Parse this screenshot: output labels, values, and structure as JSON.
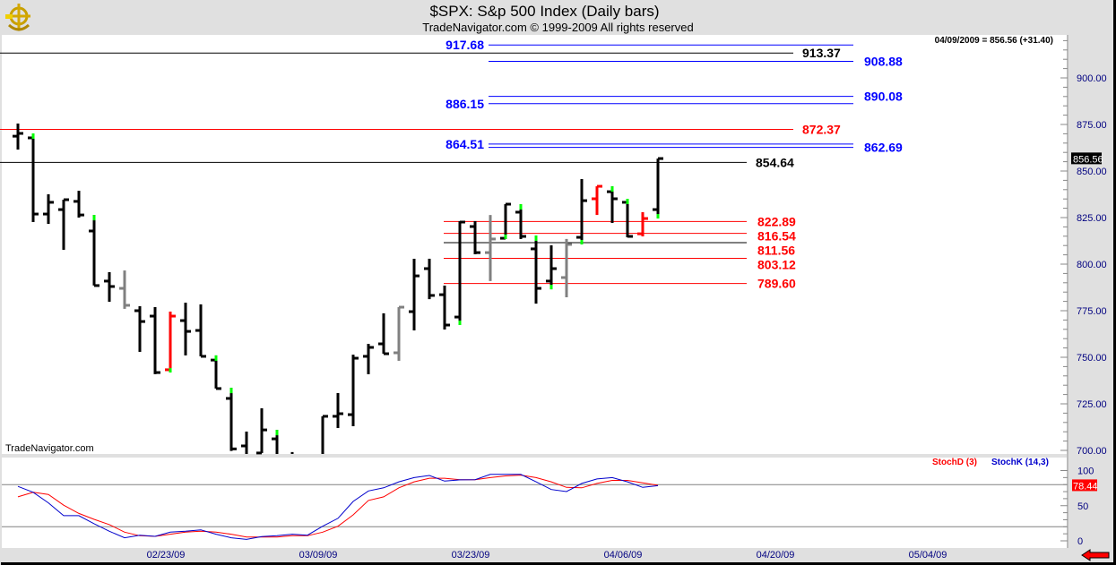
{
  "header": {
    "title": "$SPX:  S&p 500 Index  (Daily bars)",
    "subtitle": "TradeNavigator.com © 1999-2009 All rights reserved",
    "quote": "04/09/2009 = 856.56 (+31.40)",
    "watermark": "TradeNavigator.com",
    "logo": "TradeNavigator"
  },
  "icons": {
    "logo": "ship-wheel-anchor-icon",
    "nav": "red-left-arrow-icon"
  },
  "colors": {
    "up_bar": "#000000",
    "down_bar": "#ff0000",
    "neutral_bar": "#808080",
    "highlight": "#00ff00",
    "axis_text": "#000080",
    "stochK": "#0000cc",
    "stochD": "#ff0000"
  },
  "chart_data": [
    {
      "type": "ohlc",
      "title": "$SPX:  S&p 500 Index  (Daily bars)",
      "ylim": [
        700,
        925
      ],
      "yticks": [
        "900.00",
        "875.00",
        "850.00",
        "825.00",
        "800.00",
        "775.00",
        "750.00",
        "725.00",
        "700.00"
      ],
      "last_price_label": "856.56",
      "grid": false,
      "bars": [
        {
          "o": 868.7,
          "h": 875.5,
          "l": 861.5,
          "c": 870.2,
          "color": "black"
        },
        {
          "o": 867.8,
          "h": 870.2,
          "l": 822.6,
          "c": 826.9,
          "color": "black",
          "hl": "top"
        },
        {
          "o": 826.9,
          "h": 837.5,
          "l": 821.6,
          "c": 833.2,
          "color": "black"
        },
        {
          "o": 829.3,
          "h": 834.6,
          "l": 807.7,
          "c": 834.6,
          "color": "black"
        },
        {
          "o": 833.7,
          "h": 839.4,
          "l": 825.0,
          "c": 826.4,
          "color": "black"
        },
        {
          "o": 817.8,
          "h": 826.4,
          "l": 788.5,
          "c": 788.5,
          "color": "black",
          "hl": "top"
        },
        {
          "o": 790.9,
          "h": 795.7,
          "l": 779.8,
          "c": 788.0,
          "color": "black"
        },
        {
          "o": 787.0,
          "h": 796.6,
          "l": 776.0,
          "c": 777.9,
          "color": "gray"
        },
        {
          "o": 775.0,
          "h": 777.4,
          "l": 752.9,
          "c": 769.2,
          "color": "black"
        },
        {
          "o": 772.1,
          "h": 776.9,
          "l": 740.9,
          "c": 741.8,
          "color": "black"
        },
        {
          "o": 743.3,
          "h": 774.5,
          "l": 741.8,
          "c": 772.1,
          "color": "red",
          "hl": "bottom"
        },
        {
          "o": 769.7,
          "h": 779.3,
          "l": 751.0,
          "c": 763.9,
          "color": "black"
        },
        {
          "o": 764.4,
          "h": 778.4,
          "l": 750.5,
          "c": 750.5,
          "color": "black"
        },
        {
          "o": 748.5,
          "h": 751.0,
          "l": 733.2,
          "c": 733.2,
          "color": "black",
          "hl": "top"
        },
        {
          "o": 727.9,
          "h": 733.6,
          "l": 699.7,
          "c": 700.8,
          "color": "black",
          "hl": "top"
        },
        {
          "o": 702.4,
          "h": 710.1,
          "l": 692.3,
          "c": 696.3,
          "color": "black"
        },
        {
          "o": 698.6,
          "h": 722.6,
          "l": 698.6,
          "c": 711.0,
          "color": "black"
        },
        {
          "o": 706.2,
          "h": 711.0,
          "l": 677.9,
          "c": 682.6,
          "color": "black",
          "hl": "top"
        },
        {
          "o": 684.0,
          "h": 699.1,
          "l": 666.8,
          "c": 683.4,
          "color": "black"
        },
        {
          "o": 680.8,
          "h": 695.3,
          "l": 672.9,
          "c": 676.5,
          "color": "black"
        },
        {
          "o": 679.3,
          "h": 718.3,
          "l": 679.3,
          "c": 718.3,
          "color": "black"
        },
        {
          "o": 718.3,
          "h": 730.8,
          "l": 712.0,
          "c": 719.7,
          "color": "black"
        },
        {
          "o": 719.2,
          "h": 751.4,
          "l": 713.0,
          "c": 749.5,
          "color": "black"
        },
        {
          "o": 750.5,
          "h": 757.2,
          "l": 740.9,
          "c": 755.3,
          "color": "black"
        },
        {
          "o": 757.2,
          "h": 773.6,
          "l": 751.9,
          "c": 751.9,
          "color": "black"
        },
        {
          "o": 752.4,
          "h": 776.9,
          "l": 748.1,
          "c": 776.9,
          "color": "gray"
        },
        {
          "o": 774.5,
          "h": 802.9,
          "l": 764.4,
          "c": 793.7,
          "color": "black"
        },
        {
          "o": 797.6,
          "h": 802.9,
          "l": 781.2,
          "c": 783.2,
          "color": "black"
        },
        {
          "o": 783.6,
          "h": 788.5,
          "l": 764.9,
          "c": 767.3,
          "color": "black"
        },
        {
          "o": 771.6,
          "h": 823.1,
          "l": 767.3,
          "c": 822.6,
          "color": "black",
          "hl": "bottom"
        },
        {
          "o": 820.2,
          "h": 823.1,
          "l": 805.3,
          "c": 806.2,
          "color": "black"
        },
        {
          "o": 806.2,
          "h": 826.4,
          "l": 790.9,
          "c": 813.5,
          "color": "gray"
        },
        {
          "o": 813.9,
          "h": 832.2,
          "l": 813.5,
          "c": 832.2,
          "color": "black",
          "hl": "bottom"
        },
        {
          "o": 827.9,
          "h": 832.2,
          "l": 813.5,
          "c": 814.9,
          "color": "black",
          "hl": "top"
        },
        {
          "o": 808.2,
          "h": 815.4,
          "l": 778.8,
          "c": 787.0,
          "color": "black",
          "hl": "top"
        },
        {
          "o": 790.9,
          "h": 810.1,
          "l": 786.5,
          "c": 797.6,
          "color": "black",
          "hl": "bottom"
        },
        {
          "o": 792.8,
          "h": 813.5,
          "l": 782.2,
          "c": 810.6,
          "color": "gray"
        },
        {
          "o": 814.4,
          "h": 845.7,
          "l": 810.6,
          "c": 834.1,
          "color": "black",
          "hl": "bottom"
        },
        {
          "o": 835.1,
          "h": 841.8,
          "l": 826.4,
          "c": 841.8,
          "color": "red"
        },
        {
          "o": 838.9,
          "h": 841.8,
          "l": 822.1,
          "c": 835.1,
          "color": "black",
          "hl": "top"
        },
        {
          "o": 833.2,
          "h": 835.1,
          "l": 814.4,
          "c": 814.9,
          "color": "black",
          "hl": "top"
        },
        {
          "o": 816.3,
          "h": 827.9,
          "l": 814.9,
          "c": 824.5,
          "color": "red"
        },
        {
          "o": 829.3,
          "h": 856.7,
          "l": 824.5,
          "c": 856.7,
          "color": "black",
          "hl": "bottom"
        }
      ],
      "levels": [
        {
          "value": 917.68,
          "label": "917.68",
          "color": "#0000ff"
        },
        {
          "value": 913.37,
          "label": "913.37",
          "color": "#000000"
        },
        {
          "value": 908.88,
          "label": "908.88",
          "color": "#0000ff"
        },
        {
          "value": 890.08,
          "label": "890.08",
          "color": "#0000ff"
        },
        {
          "value": 886.15,
          "label": "886.15",
          "color": "#0000ff"
        },
        {
          "value": 872.37,
          "label": "872.37",
          "color": "#ff0000"
        },
        {
          "value": 864.51,
          "label": "864.51",
          "color": "#0000ff"
        },
        {
          "value": 862.69,
          "label": "862.69",
          "color": "#0000ff"
        },
        {
          "value": 854.64,
          "label": "854.64",
          "color": "#000000"
        },
        {
          "value": 822.89,
          "label": "822.89",
          "color": "#ff0000"
        },
        {
          "value": 816.54,
          "label": "816.54",
          "color": "#ff0000"
        },
        {
          "value": 811.56,
          "label": "811.56",
          "color": "#ff0000",
          "line_color": "#000000"
        },
        {
          "value": 803.12,
          "label": "803.12",
          "color": "#ff0000"
        },
        {
          "value": 789.6,
          "label": "789.60",
          "color": "#ff0000"
        }
      ]
    },
    {
      "type": "line",
      "ylim": [
        0,
        100
      ],
      "yticks": [
        "100",
        "50",
        "0"
      ],
      "reference_lines": [
        80,
        20
      ],
      "last_value_label": "78.44",
      "xticks": [
        "02/23/09",
        "03/09/09",
        "03/23/09",
        "04/06/09",
        "04/20/09",
        "05/04/09"
      ],
      "series": [
        {
          "name": "StochD (3)",
          "color": "#ff0000",
          "values": [
            62.6,
            69,
            66,
            50.7,
            39,
            30.6,
            23,
            12.3,
            7.2,
            6.4,
            9.4,
            12.3,
            13.6,
            12.3,
            9.4,
            5.5,
            5.5,
            5.5,
            7.2,
            7.2,
            12.3,
            20.8,
            37,
            57.5,
            62.6,
            75.4,
            84,
            89,
            89,
            87,
            87,
            90,
            92.3,
            93.5,
            90,
            84,
            76,
            75.4,
            81.7,
            86,
            86,
            82.6,
            79
          ]
        },
        {
          "name": "StochK (14,3)",
          "color": "#0000cc",
          "values": [
            77.5,
            69,
            54,
            35.8,
            35.8,
            24.3,
            13.6,
            4.3,
            8,
            6.4,
            12.3,
            13.6,
            15.7,
            9.4,
            4.3,
            2.1,
            6,
            7.2,
            9.4,
            8,
            20.8,
            32,
            56,
            71,
            75.4,
            84,
            90,
            93,
            85,
            86.8,
            87,
            94.5,
            94.5,
            94.5,
            84,
            73,
            70,
            81.7,
            88,
            90,
            84,
            76,
            78.44
          ]
        }
      ]
    }
  ]
}
